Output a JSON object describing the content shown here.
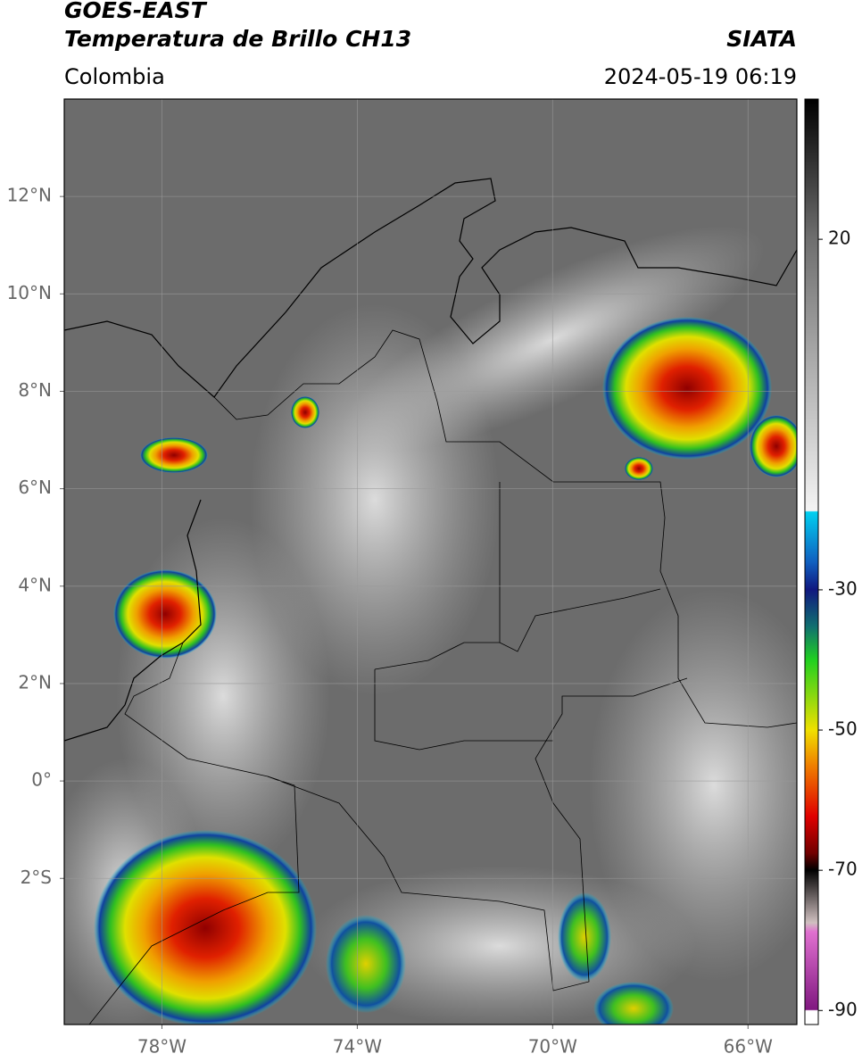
{
  "header": {
    "title": "GOES-EAST",
    "subtitle": "Temperatura de Brillo CH13",
    "region": "Colombia",
    "source": "SIATA",
    "datetime": "2024-05-19 06:19"
  },
  "map": {
    "xlim": [
      -80,
      -65
    ],
    "ylim": [
      -5,
      14
    ],
    "xticks": [
      {
        "value": -78,
        "label": "78°W"
      },
      {
        "value": -74,
        "label": "74°W"
      },
      {
        "value": -70,
        "label": "70°W"
      },
      {
        "value": -66,
        "label": "66°W"
      }
    ],
    "yticks": [
      {
        "value": 12,
        "label": "12°N"
      },
      {
        "value": 10,
        "label": "10°N"
      },
      {
        "value": 8,
        "label": "8°N"
      },
      {
        "value": 6,
        "label": "6°N"
      },
      {
        "value": 4,
        "label": "4°N"
      },
      {
        "value": 2,
        "label": "2°N"
      },
      {
        "value": 0,
        "label": "0°"
      },
      {
        "value": -2,
        "label": "2°S"
      }
    ],
    "grid": true
  },
  "colorbar": {
    "lim": [
      -92,
      40
    ],
    "ticks": [
      20,
      -30,
      -50,
      -70,
      -90
    ]
  }
}
